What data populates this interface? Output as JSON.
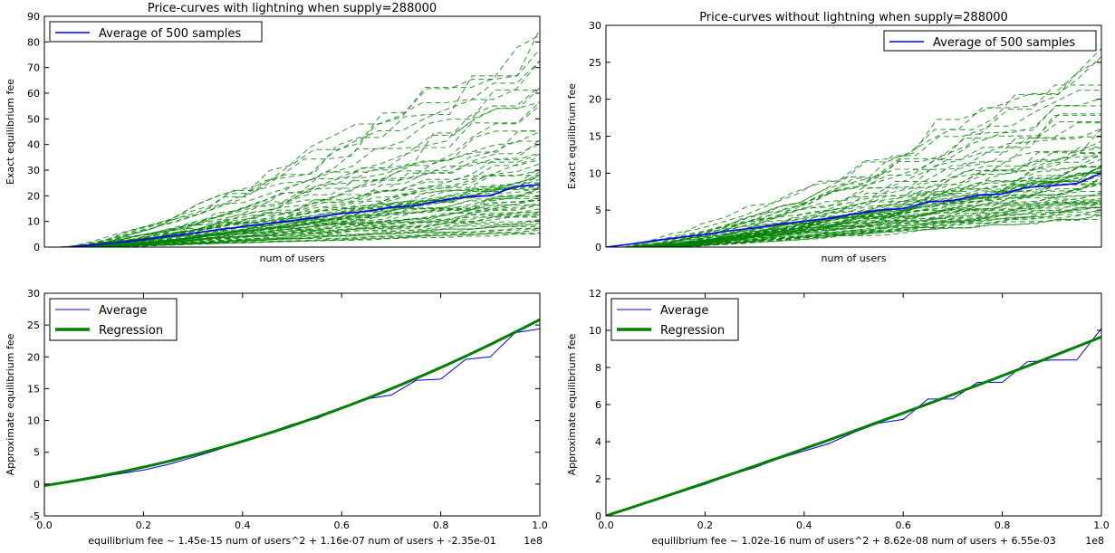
{
  "figure": {
    "background": "#ffffff"
  },
  "chart_data": [
    {
      "type": "line",
      "title": "Price-curves with lightning when supply=288000",
      "xlabel": "num of users",
      "ylabel": "Exact equilibrium fee",
      "xlim": [
        0,
        1
      ],
      "ylim": [
        0,
        90
      ],
      "xticks_visible": false,
      "yticks": [
        0,
        10,
        20,
        30,
        40,
        50,
        60,
        70,
        80,
        90
      ],
      "grid": false,
      "legend": {
        "placement": "upper-left",
        "entries": [
          {
            "label": "Average of 500 samples",
            "color": "#0000ff",
            "style": "solid"
          }
        ]
      },
      "samples": {
        "count": 500,
        "color": "#008000",
        "style": "dashed",
        "final_values_range": [
          5,
          82
        ]
      },
      "series": [
        {
          "name": "Average of 500 samples",
          "color": "#0000ff",
          "x": [
            0.05,
            0.1,
            0.15,
            0.2,
            0.25,
            0.3,
            0.35,
            0.4,
            0.45,
            0.5,
            0.55,
            0.6,
            0.65,
            0.7,
            0.75,
            0.8,
            0.85,
            0.9,
            0.95,
            1.0
          ],
          "y": [
            0.0,
            0.8,
            1.8,
            2.9,
            4.2,
            5.4,
            6.8,
            7.9,
            9.2,
            10.3,
            11.6,
            13.1,
            13.9,
            15.6,
            16.2,
            18.1,
            19.6,
            20.0,
            23.6,
            24.3
          ]
        }
      ]
    },
    {
      "type": "line",
      "title": "Price-curves without lightning when supply=288000",
      "xlabel": "num of users",
      "ylabel": "Exact equilibrium fee",
      "xlim": [
        0,
        1
      ],
      "ylim": [
        0,
        30
      ],
      "xticks_visible": false,
      "yticks": [
        0,
        5,
        10,
        15,
        20,
        25,
        30
      ],
      "grid": false,
      "legend": {
        "placement": "upper-right",
        "entries": [
          {
            "label": "Average of 500 samples",
            "color": "#0000ff",
            "style": "solid"
          }
        ]
      },
      "samples": {
        "count": 500,
        "color": "#008000",
        "style": "dashed",
        "final_values_range": [
          4,
          26
        ]
      },
      "series": [
        {
          "name": "Average of 500 samples",
          "color": "#0000ff",
          "x": [
            0.0,
            0.05,
            0.1,
            0.15,
            0.2,
            0.25,
            0.3,
            0.35,
            0.4,
            0.45,
            0.5,
            0.55,
            0.6,
            0.65,
            0.7,
            0.75,
            0.8,
            0.85,
            0.9,
            0.95,
            1.0
          ],
          "y": [
            0.0,
            0.4,
            0.9,
            1.3,
            1.7,
            2.2,
            2.6,
            3.1,
            3.5,
            3.9,
            4.5,
            5.0,
            5.2,
            6.1,
            6.3,
            7.0,
            7.2,
            8.1,
            8.3,
            8.6,
            10.0
          ]
        }
      ]
    },
    {
      "type": "line",
      "title": "",
      "xlabel": "equilibrium fee ~ 1.45e-15 num of users^2 + 1.16e-07 num of users + -2.35e-01",
      "x_offset_text": "1e8",
      "ylabel": "Approximate equilibrium fee",
      "xlim": [
        0,
        1
      ],
      "ylim": [
        -5,
        30
      ],
      "xticks": [
        0.0,
        0.2,
        0.4,
        0.6,
        0.8,
        1.0
      ],
      "xtick_labels": [
        "0.0",
        "0.2",
        "0.4",
        "0.6",
        "0.8",
        "1.0"
      ],
      "yticks": [
        -5,
        0,
        5,
        10,
        15,
        20,
        25,
        30
      ],
      "grid": false,
      "legend": {
        "placement": "upper-left",
        "entries": [
          {
            "label": "Average",
            "color": "#0000ff",
            "style": "thin"
          },
          {
            "label": "Regression",
            "color": "#008000",
            "style": "thick"
          }
        ]
      },
      "series": [
        {
          "name": "Average",
          "color": "#0000ff",
          "x": [
            0.0,
            0.05,
            0.1,
            0.15,
            0.2,
            0.25,
            0.3,
            0.35,
            0.4,
            0.45,
            0.5,
            0.55,
            0.6,
            0.65,
            0.7,
            0.75,
            0.8,
            0.85,
            0.9,
            0.95,
            1.0
          ],
          "y": [
            -0.2,
            0.3,
            0.9,
            1.6,
            2.2,
            3.1,
            4.2,
            5.4,
            6.8,
            8.0,
            9.4,
            10.3,
            12.0,
            13.4,
            14.0,
            16.3,
            16.5,
            19.6,
            20.0,
            23.8,
            24.4
          ]
        },
        {
          "name": "Regression",
          "color": "#008000",
          "coefficients": {
            "a": 1.45e-15,
            "b": 1.16e-07,
            "c": -0.235,
            "x_scale": 100000000.0
          }
        }
      ]
    },
    {
      "type": "line",
      "title": "",
      "xlabel": "equilibrium fee ~ 1.02e-16 num of users^2 + 8.62e-08 num of users + 6.55e-03",
      "x_offset_text": "1e8",
      "ylabel": "Approximate equilibrium fee",
      "xlim": [
        0,
        1
      ],
      "ylim": [
        0,
        12
      ],
      "xticks": [
        0.0,
        0.2,
        0.4,
        0.6,
        0.8,
        1.0
      ],
      "xtick_labels": [
        "0.0",
        "0.2",
        "0.4",
        "0.6",
        "0.8",
        "1.0"
      ],
      "yticks": [
        0,
        2,
        4,
        6,
        8,
        10,
        12
      ],
      "grid": false,
      "legend": {
        "placement": "upper-left",
        "entries": [
          {
            "label": "Average",
            "color": "#0000ff",
            "style": "thin"
          },
          {
            "label": "Regression",
            "color": "#008000",
            "style": "thick"
          }
        ]
      },
      "series": [
        {
          "name": "Average",
          "color": "#0000ff",
          "x": [
            0.0,
            0.05,
            0.1,
            0.15,
            0.2,
            0.25,
            0.3,
            0.35,
            0.4,
            0.45,
            0.5,
            0.55,
            0.6,
            0.65,
            0.7,
            0.75,
            0.8,
            0.85,
            0.9,
            0.95,
            1.0
          ],
          "y": [
            0.0,
            0.4,
            0.9,
            1.3,
            1.7,
            2.2,
            2.6,
            3.1,
            3.5,
            3.9,
            4.5,
            5.0,
            5.2,
            6.3,
            6.3,
            7.2,
            7.2,
            8.3,
            8.4,
            8.4,
            10.1
          ]
        },
        {
          "name": "Regression",
          "color": "#008000",
          "coefficients": {
            "a": 1.02e-16,
            "b": 8.62e-08,
            "c": 0.00655,
            "x_scale": 100000000.0
          }
        }
      ]
    }
  ]
}
